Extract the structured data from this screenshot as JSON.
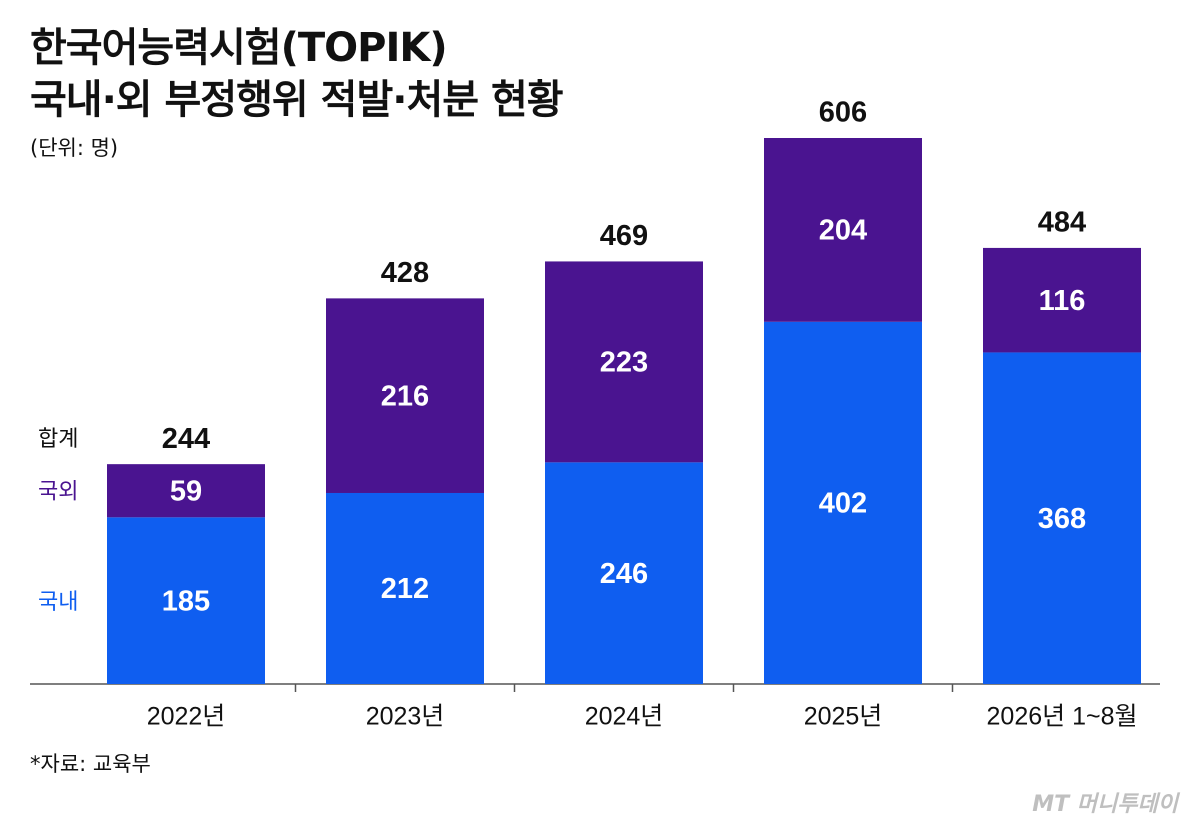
{
  "title_line1": "한국어능력시험(TOPIK)",
  "title_line2": "국내·외 부정행위 적발·처분 현황",
  "unit": "(단위: 명)",
  "source": "*자료: 교육부",
  "logo": "MT 머니투데이",
  "colors": {
    "domestic": "#0f5ef0",
    "overseas": "#4a1490",
    "total_text": "#111111",
    "legend_overseas": "#4a1490",
    "legend_domestic": "#0f5ef0"
  },
  "chart_data": {
    "type": "bar",
    "stacked": true,
    "categories": [
      "2022년",
      "2023년",
      "2024년",
      "2025년",
      "2026년 1~8월"
    ],
    "series": [
      {
        "name": "국내",
        "values": [
          185,
          212,
          246,
          402,
          368
        ]
      },
      {
        "name": "국외",
        "values": [
          59,
          216,
          223,
          204,
          116
        ]
      }
    ],
    "totals": [
      244,
      428,
      469,
      606,
      484
    ],
    "total_label": "합계",
    "ylim": [
      0,
      606
    ],
    "grid": false,
    "legend": "left"
  }
}
